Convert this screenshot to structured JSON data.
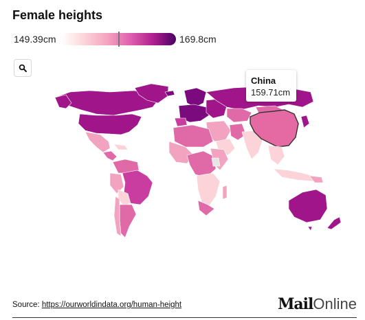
{
  "title": "Female heights",
  "legend": {
    "min": "149.39cm",
    "max": "169.8cm",
    "min_value": 149.39,
    "max_value": 169.8,
    "marker_value": 159.71,
    "colors": [
      "#ffffff",
      "#fde0e0",
      "#f5a3bf",
      "#e060b0",
      "#b0208e",
      "#4a0066"
    ]
  },
  "zoom": {
    "icon": "search-icon"
  },
  "tooltip": {
    "country": "China",
    "value": "159.71cm"
  },
  "map_colors": {
    "very_tall": "#7a0a7e",
    "tall": "#a0168a",
    "mid_high": "#c83d9f",
    "mid": "#e06aa8",
    "mid_low": "#f2a3c0",
    "low": "#fbd3d8",
    "no_data": "#e5e5e5",
    "highlight_stroke": "#333333"
  },
  "source": {
    "label": "Source: ",
    "link": "https://ourworldindata.org/human-height"
  },
  "brand": {
    "part1": "Mail",
    "part2": "Online"
  }
}
